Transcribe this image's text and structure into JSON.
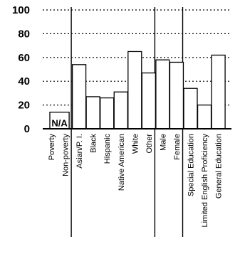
{
  "chart_data": {
    "type": "bar",
    "ylim": [
      0,
      100
    ],
    "yticks": [
      "100",
      "80",
      "60",
      "40",
      "20",
      "0"
    ],
    "grid": "dotted horizontal",
    "categories": [
      "Poverty",
      "Non-poverty",
      "Asian/P. I.",
      "Black",
      "Hispanic",
      "Native American",
      "White",
      "Other",
      "Male",
      "Female",
      "Special Education",
      "Limited English Proficiency",
      "General Education"
    ],
    "values": [
      null,
      null,
      54,
      27,
      26,
      31,
      65,
      47,
      58,
      56,
      34,
      20,
      62
    ],
    "na_label": "N/A",
    "groups": [
      [
        "Poverty",
        "Non-poverty"
      ],
      [
        "Asian/P. I.",
        "Black",
        "Hispanic",
        "Native American",
        "White",
        "Other"
      ],
      [
        "Male",
        "Female"
      ],
      [
        "Special Education",
        "Limited English Proficiency",
        "General Education"
      ]
    ]
  }
}
